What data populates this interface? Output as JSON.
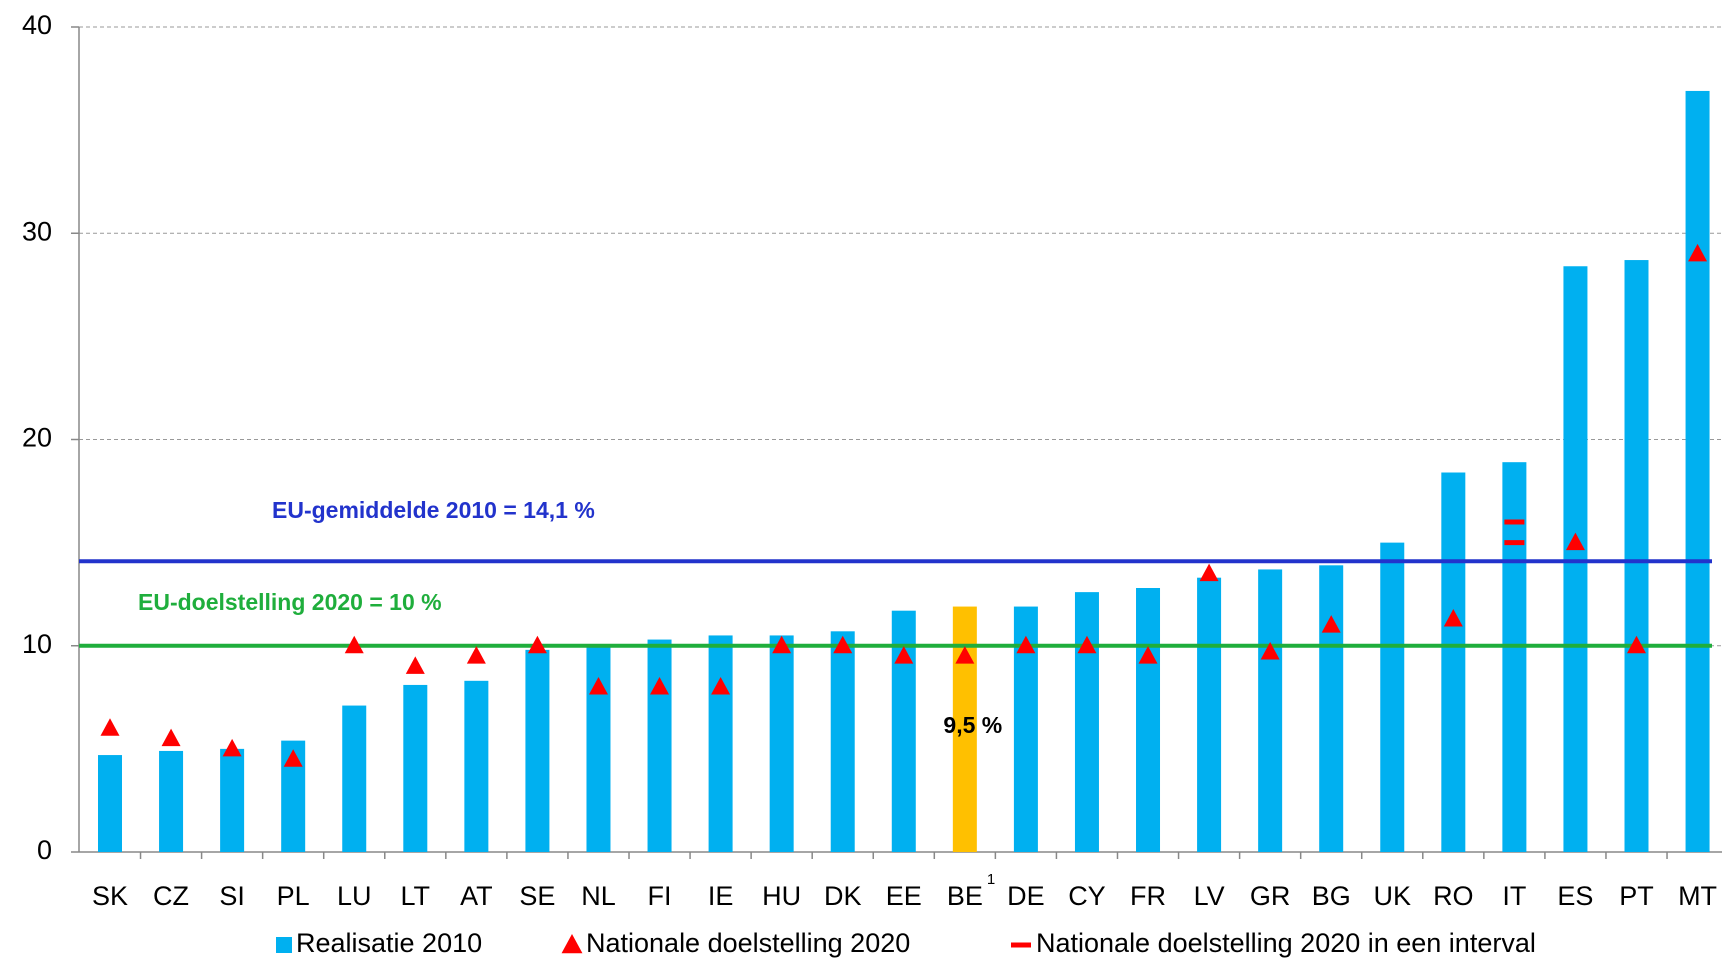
{
  "chart_data": {
    "type": "bar",
    "categories": [
      "SK",
      "CZ",
      "SI",
      "PL",
      "LU",
      "LT",
      "AT",
      "SE",
      "NL",
      "FI",
      "IE",
      "HU",
      "DK",
      "EE",
      "BE",
      "DE",
      "CY",
      "FR",
      "LV",
      "GR",
      "BG",
      "UK",
      "RO",
      "IT",
      "ES",
      "PT",
      "MT"
    ],
    "category_notes": [
      null,
      null,
      null,
      null,
      null,
      null,
      null,
      null,
      null,
      null,
      null,
      null,
      null,
      null,
      "1",
      null,
      null,
      null,
      null,
      null,
      null,
      null,
      null,
      null,
      null,
      null,
      null
    ],
    "series": [
      {
        "name": "Realisatie 2010",
        "color": "#00b0f0",
        "colors": [
          "#00b0f0",
          "#00b0f0",
          "#00b0f0",
          "#00b0f0",
          "#00b0f0",
          "#00b0f0",
          "#00b0f0",
          "#00b0f0",
          "#00b0f0",
          "#00b0f0",
          "#00b0f0",
          "#00b0f0",
          "#00b0f0",
          "#00b0f0",
          "#ffc000",
          "#00b0f0",
          "#00b0f0",
          "#00b0f0",
          "#00b0f0",
          "#00b0f0",
          "#00b0f0",
          "#00b0f0",
          "#00b0f0",
          "#00b0f0",
          "#00b0f0",
          "#00b0f0",
          "#00b0f0"
        ],
        "values": [
          4.7,
          4.9,
          5.0,
          5.4,
          7.1,
          8.1,
          8.3,
          9.8,
          10.0,
          10.3,
          10.5,
          10.5,
          10.7,
          11.7,
          11.9,
          11.9,
          12.6,
          12.8,
          13.3,
          13.7,
          13.9,
          15.0,
          18.4,
          18.9,
          28.4,
          28.7,
          36.9
        ]
      },
      {
        "name": "Nationale doelstelling 2020",
        "color": "#ff0000",
        "marker": "triangle",
        "values": [
          6,
          5.5,
          5,
          4.5,
          10,
          9,
          9.5,
          10,
          8,
          8,
          8,
          10,
          10,
          9.5,
          9.5,
          10,
          10,
          9.5,
          13.5,
          9.7,
          11,
          null,
          11.3,
          null,
          15,
          10,
          29
        ],
        "value_labels": [
          null,
          null,
          null,
          null,
          null,
          null,
          null,
          null,
          null,
          null,
          null,
          null,
          null,
          null,
          "9,5 %",
          null,
          null,
          null,
          null,
          null,
          null,
          null,
          null,
          null,
          null,
          null,
          null
        ]
      },
      {
        "name": "Nationale doelstelling 2020 in een interval",
        "color": "#ff0000",
        "marker": "dash",
        "values": [
          null,
          null,
          null,
          null,
          null,
          null,
          null,
          null,
          null,
          null,
          null,
          null,
          null,
          null,
          null,
          null,
          null,
          null,
          null,
          null,
          null,
          null,
          null,
          [
            15,
            16
          ],
          null,
          null,
          null
        ]
      }
    ],
    "reference_lines": [
      {
        "label": "EU-gemiddelde 2010 = 14,1 %",
        "value": 14.1,
        "color": "#2233cc"
      },
      {
        "label": "EU-doelstelling 2020 = 10 %",
        "value": 10,
        "color": "#1fae3c"
      }
    ],
    "ylim": [
      0,
      40
    ],
    "yticks": [
      0,
      10,
      20,
      30,
      40
    ],
    "grid": true
  }
}
